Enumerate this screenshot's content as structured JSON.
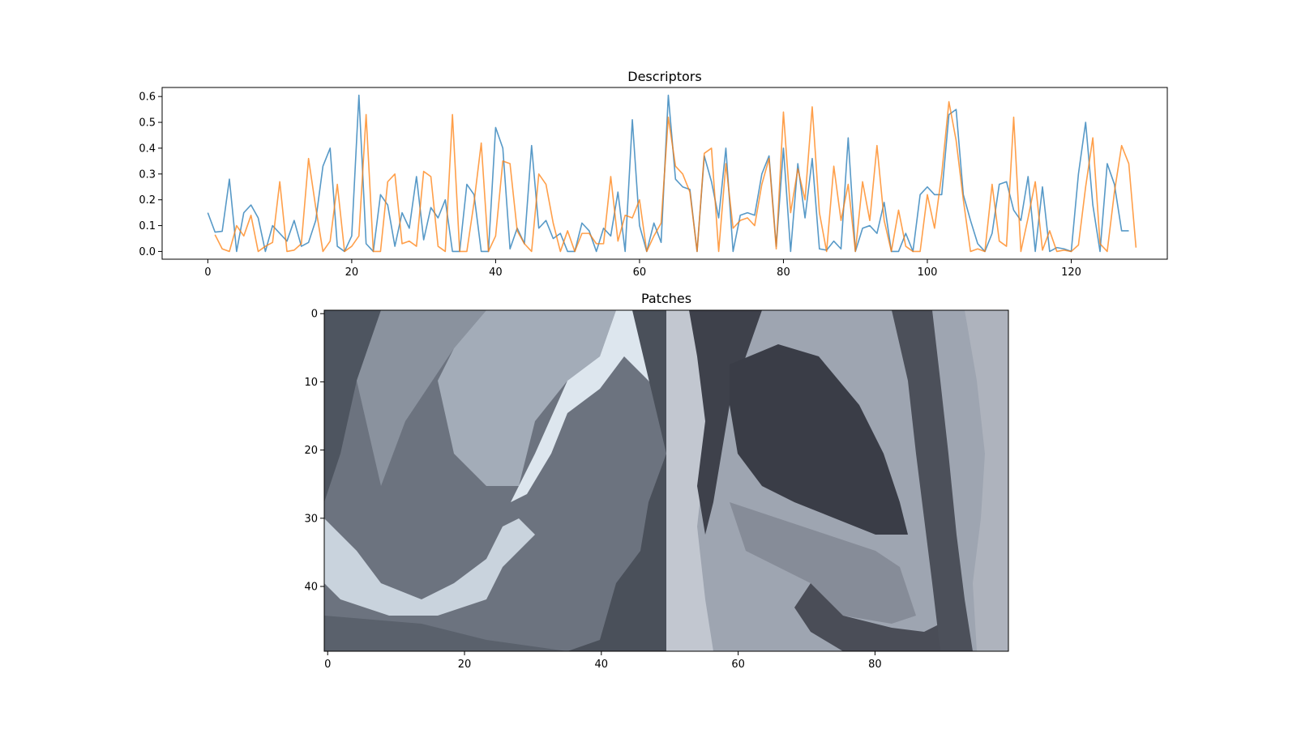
{
  "chart_data": [
    {
      "type": "line",
      "title": "Descriptors",
      "xlabel": "",
      "ylabel": "",
      "xlim": [
        -6.35,
        133.35
      ],
      "ylim": [
        -0.03,
        0.635
      ],
      "xticks": [
        "0",
        "20",
        "40",
        "60",
        "80",
        "100",
        "120"
      ],
      "yticks": [
        "0.0",
        "0.1",
        "0.2",
        "0.3",
        "0.4",
        "0.5",
        "0.6"
      ],
      "grid": false,
      "series": [
        {
          "color": "#1f77b4",
          "x_start": 0,
          "values": [
            0.15,
            0.075,
            0.078,
            0.28,
            0.0,
            0.15,
            0.18,
            0.13,
            0.0,
            0.1,
            0.07,
            0.04,
            0.12,
            0.02,
            0.035,
            0.12,
            0.33,
            0.4,
            0.02,
            0.0,
            0.06,
            0.605,
            0.03,
            0.0,
            0.22,
            0.18,
            0.02,
            0.15,
            0.09,
            0.29,
            0.045,
            0.17,
            0.13,
            0.2,
            0.0,
            0.0,
            0.26,
            0.22,
            0.0,
            0.0,
            0.48,
            0.4,
            0.01,
            0.09,
            0.03,
            0.41,
            0.09,
            0.12,
            0.05,
            0.07,
            0.0,
            0.0,
            0.11,
            0.08,
            0.0,
            0.09,
            0.06,
            0.23,
            0.0,
            0.51,
            0.1,
            0.0,
            0.11,
            0.035,
            0.605,
            0.28,
            0.25,
            0.24,
            0.0,
            0.37,
            0.27,
            0.13,
            0.4,
            0.0,
            0.14,
            0.15,
            0.14,
            0.3,
            0.37,
            0.02,
            0.4,
            0.0,
            0.34,
            0.13,
            0.36,
            0.01,
            0.005,
            0.04,
            0.01,
            0.44,
            0.0,
            0.09,
            0.1,
            0.07,
            0.19,
            0.0,
            0.0,
            0.07,
            0.0,
            0.22,
            0.25,
            0.22,
            0.22,
            0.53,
            0.55,
            0.22,
            0.12,
            0.03,
            0.0,
            0.07,
            0.26,
            0.27,
            0.16,
            0.12,
            0.29,
            0.0,
            0.25,
            0.0,
            0.015,
            0.01,
            0.0,
            0.3,
            0.5,
            0.18,
            0.0,
            0.34,
            0.26,
            0.08,
            0.08
          ]
        },
        {
          "color": "#ff7f0e",
          "x_start": 1,
          "values": [
            0.065,
            0.01,
            0.0,
            0.1,
            0.06,
            0.14,
            0.0,
            0.02,
            0.035,
            0.27,
            0.0,
            0.005,
            0.03,
            0.36,
            0.17,
            0.0,
            0.04,
            0.26,
            0.0,
            0.02,
            0.06,
            0.53,
            0.0,
            0.0,
            0.27,
            0.3,
            0.03,
            0.04,
            0.02,
            0.31,
            0.29,
            0.02,
            0.0,
            0.53,
            0.0,
            0.0,
            0.19,
            0.42,
            0.0,
            0.06,
            0.35,
            0.34,
            0.08,
            0.03,
            0.0,
            0.3,
            0.26,
            0.11,
            0.0,
            0.08,
            0.0,
            0.07,
            0.07,
            0.03,
            0.03,
            0.29,
            0.04,
            0.14,
            0.13,
            0.2,
            0.0,
            0.06,
            0.11,
            0.52,
            0.33,
            0.3,
            0.23,
            0.0,
            0.38,
            0.4,
            0.0,
            0.34,
            0.09,
            0.12,
            0.13,
            0.1,
            0.26,
            0.36,
            0.01,
            0.54,
            0.15,
            0.32,
            0.2,
            0.56,
            0.15,
            0.0,
            0.33,
            0.12,
            0.26,
            0.0,
            0.27,
            0.12,
            0.41,
            0.12,
            0.0,
            0.16,
            0.02,
            0.0,
            0.0,
            0.22,
            0.09,
            0.3,
            0.58,
            0.43,
            0.2,
            0.0,
            0.01,
            0.0,
            0.26,
            0.04,
            0.02,
            0.52,
            0.0,
            0.13,
            0.27,
            0.005,
            0.08,
            0.0,
            0.005,
            0.0,
            0.025,
            0.25,
            0.44,
            0.03,
            0.0,
            0.23,
            0.41,
            0.34,
            0.015
          ]
        }
      ]
    },
    {
      "type": "heatmap",
      "title": "Patches",
      "xlabel": "",
      "ylabel": "",
      "xlim": [
        -0.5,
        99.5
      ],
      "ylim": [
        49.5,
        -0.5
      ],
      "xticks": [
        "0",
        "20",
        "40",
        "60",
        "80"
      ],
      "yticks": [
        "0",
        "10",
        "20",
        "30",
        "40"
      ],
      "grid": false,
      "palette": {
        "dark": "#3a3d47",
        "mid": "#6c737f",
        "light": "#aab0bc",
        "highlight": "#dde6ee"
      }
    }
  ]
}
